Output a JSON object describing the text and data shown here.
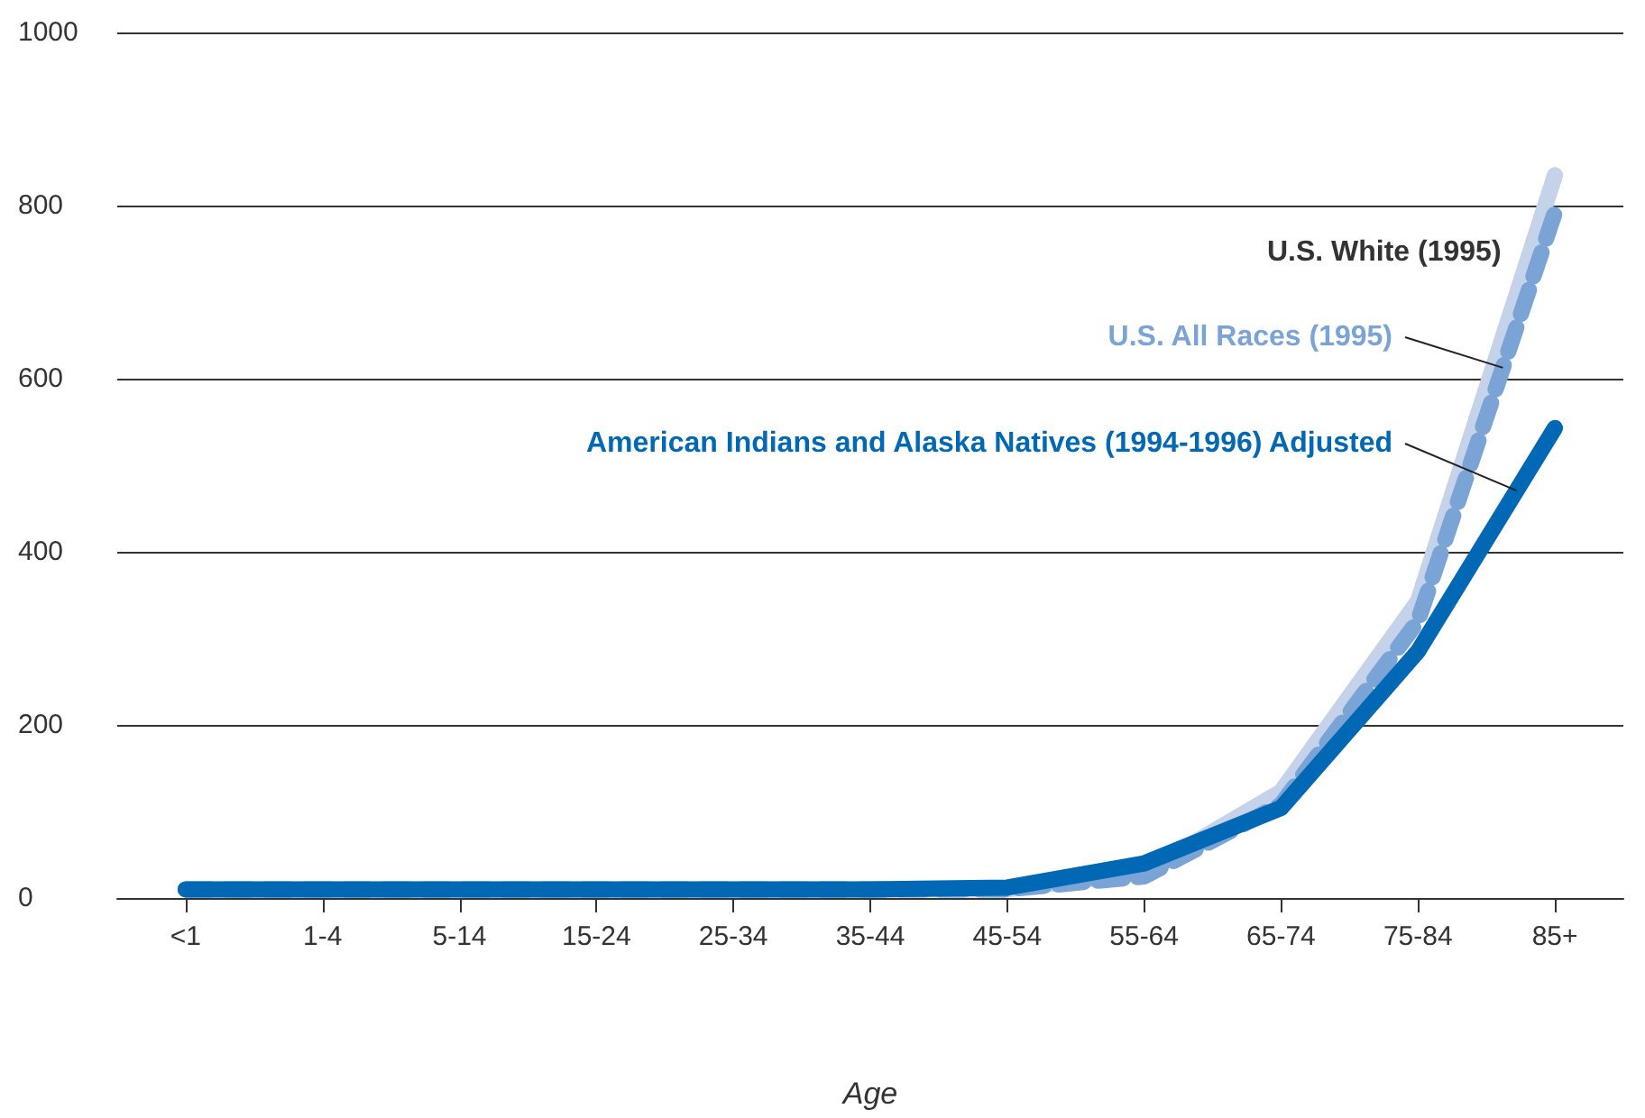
{
  "chart_data": {
    "type": "line",
    "xlabel": "Age",
    "categories": [
      "<1",
      "1-4",
      "5-14",
      "15-24",
      "25-34",
      "35-44",
      "45-54",
      "55-64",
      "65-74",
      "75-84",
      "85+"
    ],
    "series": [
      {
        "name": "U.S. White (1995)",
        "color": "#c5d3ea",
        "line_style": "solid",
        "values": [
          10,
          null,
          null,
          null,
          null,
          null,
          10,
          30,
          123,
          343,
          835
        ]
      },
      {
        "name": "U.S. All Races (1995)",
        "color": "#7aa3d6",
        "line_style": "dashed",
        "values": [
          10,
          10,
          10,
          10,
          10,
          10,
          10,
          25,
          108,
          320,
          792
        ]
      },
      {
        "name": "American Indians and Alaska Natives (1994-1996) Adjusted",
        "color": "#0068b5",
        "line_style": "solid",
        "values": [
          10,
          10,
          10,
          10,
          10,
          10,
          12,
          40,
          104,
          285,
          543
        ]
      }
    ],
    "ylim": [
      0,
      1000
    ],
    "yticks": [
      0,
      200,
      400,
      600,
      800,
      1000
    ],
    "grid": "y",
    "legend": false,
    "marker": "none"
  }
}
